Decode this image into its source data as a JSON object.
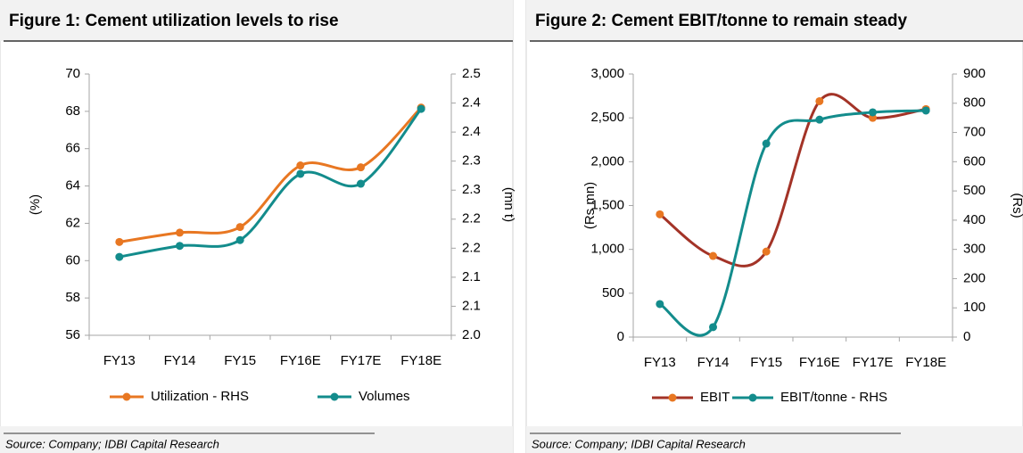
{
  "chart_data": [
    {
      "type": "line",
      "title": "Figure 1: Cement utilization levels to rise",
      "categories": [
        "FY13",
        "FY14",
        "FY15",
        "FY16E",
        "FY17E",
        "FY18E"
      ],
      "series": [
        {
          "name": "Utilization - RHS",
          "color": "#e87722",
          "marker_color": "#e87722",
          "values": [
            61.0,
            61.5,
            61.8,
            65.1,
            65.0,
            68.2
          ]
        },
        {
          "name": "Volumes",
          "color": "#138c8c",
          "marker_color": "#138c8c",
          "axis": "y2",
          "values": [
            2.135,
            2.154,
            2.164,
            2.278,
            2.261,
            2.39
          ]
        }
      ],
      "ylabel": "(%)",
      "y2label": "(mn t)",
      "ylim": [
        56,
        70
      ],
      "yticks": [
        56,
        58,
        60,
        62,
        64,
        66,
        68,
        70
      ],
      "y2lim": [
        2.0,
        2.45
      ],
      "y2ticks": [
        {
          "value": 2.0,
          "label": "2.0"
        },
        {
          "value": 2.05,
          "label": "2.1"
        },
        {
          "value": 2.1,
          "label": "2.1"
        },
        {
          "value": 2.15,
          "label": "2.2"
        },
        {
          "value": 2.2,
          "label": "2.2"
        },
        {
          "value": 2.25,
          "label": "2.3"
        },
        {
          "value": 2.3,
          "label": "2.3"
        },
        {
          "value": 2.35,
          "label": "2.4"
        },
        {
          "value": 2.4,
          "label": "2.4"
        },
        {
          "value": 2.45,
          "label": "2.5"
        }
      ],
      "legend": "bottom",
      "grid": false,
      "source": "Source: Company; IDBI Capital Research"
    },
    {
      "type": "line",
      "title": "Figure 2: Cement EBIT/tonne to remain steady",
      "categories": [
        "FY13",
        "FY14",
        "FY15",
        "FY16E",
        "FY17E",
        "FY18E"
      ],
      "series": [
        {
          "name": "EBIT",
          "color": "#a33327",
          "marker_color": "#e87722",
          "values": [
            1400,
            925,
            975,
            2690,
            2500,
            2600
          ]
        },
        {
          "name": "EBIT/tonne - RHS",
          "color": "#138c8c",
          "marker_color": "#138c8c",
          "axis": "y2",
          "values": [
            113,
            34,
            662,
            744,
            769,
            775
          ]
        }
      ],
      "ylabel": "(Rs mn)",
      "y2label": "(Rs)",
      "ylim": [
        0,
        3000
      ],
      "yticks": [
        0,
        500,
        {
          "value": 1000,
          "label": "1,000"
        },
        {
          "value": 1500,
          "label": "1,500"
        },
        {
          "value": 2000,
          "label": "2,000"
        },
        {
          "value": 2500,
          "label": "2,500"
        },
        {
          "value": 3000,
          "label": "3,000"
        }
      ],
      "y2lim": [
        0,
        900
      ],
      "y2ticks": [
        0,
        100,
        200,
        300,
        400,
        500,
        600,
        700,
        800,
        900
      ],
      "legend": "bottom",
      "grid": false,
      "source": "Source: Company; IDBI Capital Research"
    }
  ]
}
